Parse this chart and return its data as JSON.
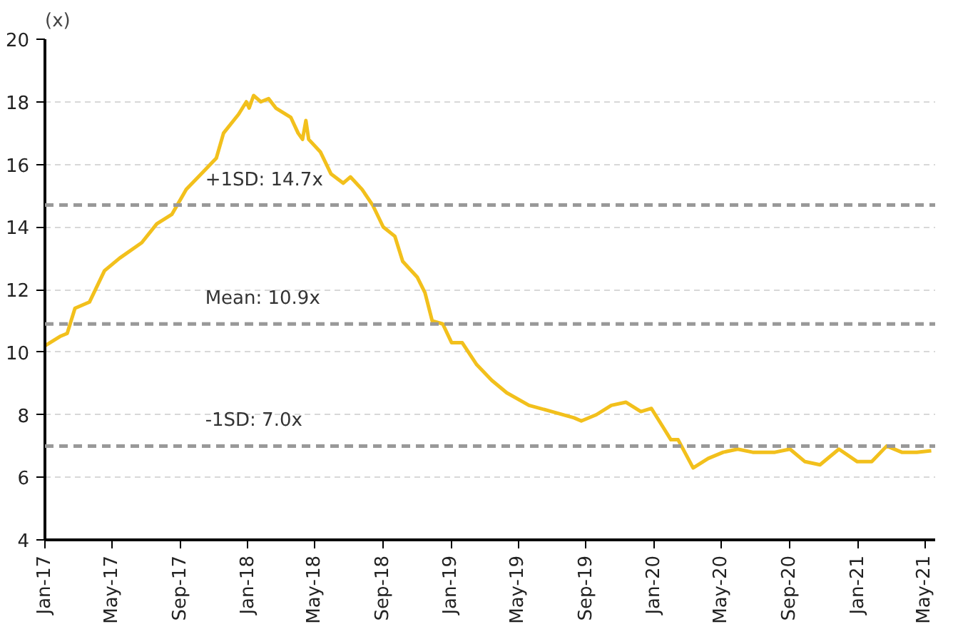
{
  "chart_data": {
    "type": "line",
    "ylabel": "(x)",
    "x": [
      "2017-01-01",
      "2017-01-28",
      "2017-02-10",
      "2017-02-24",
      "2017-03-22",
      "2017-04-18",
      "2017-05-15",
      "2017-06-24",
      "2017-07-21",
      "2017-08-17",
      "2017-09-12",
      "2017-10-09",
      "2017-11-05",
      "2017-11-18",
      "2017-12-15",
      "2017-12-29",
      "2018-01-03",
      "2018-01-11",
      "2018-01-24",
      "2018-02-07",
      "2018-02-20",
      "2018-03-19",
      "2018-04-01",
      "2018-04-09",
      "2018-04-15",
      "2018-04-20",
      "2018-05-11",
      "2018-05-30",
      "2018-06-21",
      "2018-07-04",
      "2018-07-25",
      "2018-08-13",
      "2018-09-01",
      "2018-09-22",
      "2018-10-06",
      "2018-11-01",
      "2018-11-15",
      "2018-11-28",
      "2018-12-17",
      "2019-01-02",
      "2019-01-21",
      "2019-02-16",
      "2019-03-15",
      "2019-04-11",
      "2019-05-21",
      "2019-07-01",
      "2019-08-10",
      "2019-08-23",
      "2019-09-19",
      "2019-10-16",
      "2019-11-11",
      "2019-12-08",
      "2019-12-27",
      "2020-01-17",
      "2020-01-31",
      "2020-02-13",
      "2020-03-11",
      "2020-04-07",
      "2020-05-04",
      "2020-05-30",
      "2020-06-26",
      "2020-08-05",
      "2020-09-01",
      "2020-09-28",
      "2020-10-25",
      "2020-11-28",
      "2020-12-31",
      "2021-01-26",
      "2021-02-22",
      "2021-03-21",
      "2021-04-17",
      "2021-05-13"
    ],
    "series": [
      {
        "color": "#f2c01c",
        "values": [
          10.2,
          10.5,
          10.6,
          11.4,
          11.6,
          12.6,
          13.0,
          13.5,
          14.1,
          14.4,
          15.2,
          15.7,
          16.2,
          17.0,
          17.6,
          18.0,
          17.8,
          18.2,
          18.0,
          18.1,
          17.8,
          17.5,
          17.0,
          16.8,
          17.4,
          16.8,
          16.4,
          15.7,
          15.4,
          15.6,
          15.2,
          14.7,
          14.0,
          13.7,
          12.9,
          12.4,
          11.9,
          11.0,
          10.9,
          10.3,
          10.3,
          9.6,
          9.1,
          8.7,
          8.3,
          8.1,
          7.9,
          7.8,
          8.0,
          8.3,
          8.4,
          8.1,
          8.2,
          7.6,
          7.2,
          7.2,
          6.3,
          6.6,
          6.8,
          6.9,
          6.8,
          6.8,
          6.9,
          6.5,
          6.4,
          6.9,
          6.5,
          6.5,
          7.0,
          6.8,
          6.8,
          6.85
        ]
      }
    ],
    "xlim": [
      "2017-01-01",
      "2021-05-20"
    ],
    "xticks": [
      {
        "value": "2017-01-01",
        "label": "Jan-17"
      },
      {
        "value": "2017-05-01",
        "label": "May-17"
      },
      {
        "value": "2017-09-01",
        "label": "Sep-17"
      },
      {
        "value": "2018-01-01",
        "label": "Jan-18"
      },
      {
        "value": "2018-05-01",
        "label": "May-18"
      },
      {
        "value": "2018-09-01",
        "label": "Sep-18"
      },
      {
        "value": "2019-01-01",
        "label": "Jan-19"
      },
      {
        "value": "2019-05-01",
        "label": "May-19"
      },
      {
        "value": "2019-09-01",
        "label": "Sep-19"
      },
      {
        "value": "2020-01-01",
        "label": "Jan-20"
      },
      {
        "value": "2020-05-01",
        "label": "May-20"
      },
      {
        "value": "2020-09-01",
        "label": "Sep-20"
      },
      {
        "value": "2021-01-01",
        "label": "Jan-21"
      },
      {
        "value": "2021-05-01",
        "label": "May-21"
      }
    ],
    "ylim": [
      4,
      20
    ],
    "yticks": [
      4,
      6,
      8,
      10,
      12,
      14,
      16,
      18,
      20
    ],
    "grid": "y",
    "ref_lines": [
      {
        "axis": "y",
        "value": 14.7,
        "label": "+1SD: 14.7x",
        "color": "#999999",
        "line_style": "dashed"
      },
      {
        "axis": "y",
        "value": 10.9,
        "label": "Mean: 10.9x",
        "color": "#999999",
        "line_style": "dashed"
      },
      {
        "axis": "y",
        "value": 7.0,
        "label": "-1SD: 7.0x",
        "color": "#999999",
        "line_style": "dashed"
      }
    ]
  }
}
